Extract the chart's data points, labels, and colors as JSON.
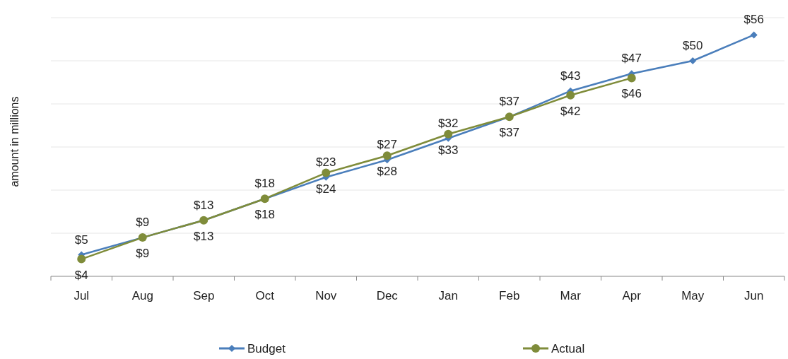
{
  "chart_data": {
    "type": "line",
    "ylabel": "amount in millions",
    "categories": [
      "Jul",
      "Aug",
      "Sep",
      "Oct",
      "Nov",
      "Dec",
      "Jan",
      "Feb",
      "Mar",
      "Apr",
      "May",
      "Jun"
    ],
    "series": [
      {
        "name": "Budget",
        "color": "#4a7ebb",
        "marker": "diamond",
        "values": [
          5,
          9,
          13,
          18,
          23,
          27,
          32,
          37,
          43,
          47,
          50,
          56
        ],
        "value_labels": [
          "$5",
          "$9",
          "$13",
          "$18",
          "$23",
          "$27",
          "$32",
          "$37",
          "$43",
          "$47",
          "$50",
          "$56"
        ]
      },
      {
        "name": "Actual",
        "color": "#7f8c3a",
        "marker": "circle",
        "values": [
          4,
          9,
          13,
          18,
          24,
          28,
          33,
          37,
          42,
          46,
          null,
          null
        ],
        "value_labels": [
          "$4",
          "$9",
          "$13",
          "$18",
          "$24",
          "$28",
          "$33",
          "$37",
          "$42",
          "$46",
          null,
          null
        ]
      }
    ],
    "ylim": [
      0,
      60
    ],
    "yticks": [
      {
        "value": 0,
        "label": null
      },
      {
        "value": 10,
        "label": null
      },
      {
        "value": 20,
        "label": null
      },
      {
        "value": 30,
        "label": null
      },
      {
        "value": 40,
        "label": null
      },
      {
        "value": 50,
        "label": null
      },
      {
        "value": 60,
        "label": null
      }
    ],
    "tick_labels": "x",
    "grid": "y",
    "legend": "bottom"
  }
}
